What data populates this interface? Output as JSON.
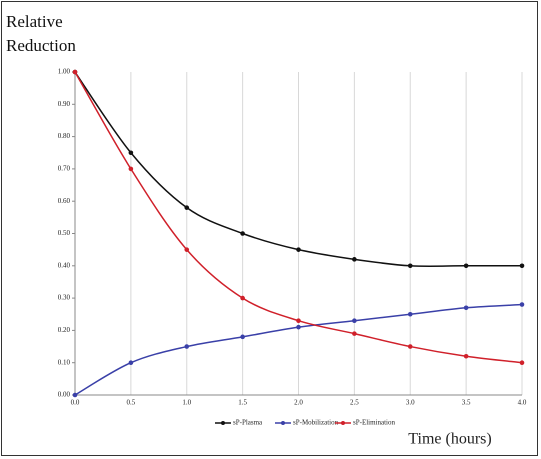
{
  "chart_data": {
    "type": "line",
    "y_label": "Relative Reduction",
    "x_label": "Time (hours)",
    "x": [
      0,
      0.5,
      1,
      1.5,
      2,
      2.5,
      3,
      3.5,
      4
    ],
    "series": [
      {
        "name": "sP-Plasma",
        "color": "#111111",
        "values": [
          1.0,
          0.75,
          0.58,
          0.5,
          0.45,
          0.42,
          0.4,
          0.4,
          0.4
        ]
      },
      {
        "name": "sP-Mobilization",
        "color": "#3a40a8",
        "values": [
          0.0,
          0.1,
          0.15,
          0.18,
          0.21,
          0.23,
          0.25,
          0.27,
          0.28
        ]
      },
      {
        "name": "sP-Elimination",
        "color": "#d0202a",
        "values": [
          1.0,
          0.7,
          0.45,
          0.3,
          0.23,
          0.19,
          0.15,
          0.12,
          0.1
        ]
      }
    ],
    "xlim": [
      0,
      4
    ],
    "xticks": [
      {
        "value": 0,
        "label": "0.0"
      },
      0.5,
      {
        "value": 1,
        "label": "1.0"
      },
      1.5,
      {
        "value": 2,
        "label": "2.0"
      },
      2.5,
      {
        "value": 3,
        "label": "3.0"
      },
      3.5,
      {
        "value": 4,
        "label": "4.0"
      }
    ],
    "ylim": [
      0,
      1
    ],
    "yticks": [
      {
        "value": 0,
        "label": "0.00"
      },
      {
        "value": 0.1,
        "label": "0.10"
      },
      {
        "value": 0.2,
        "label": "0.20"
      },
      {
        "value": 0.3,
        "label": "0.30"
      },
      {
        "value": 0.4,
        "label": "0.40"
      },
      {
        "value": 0.5,
        "label": "0.50"
      },
      {
        "value": 0.6,
        "label": "0.60"
      },
      {
        "value": 0.7,
        "label": "0.70"
      },
      {
        "value": 0.8,
        "label": "0.80"
      },
      {
        "value": 0.9,
        "label": "0.90"
      },
      {
        "value": 1,
        "label": "1.00"
      }
    ],
    "grid": "x",
    "legend": "bottom"
  }
}
